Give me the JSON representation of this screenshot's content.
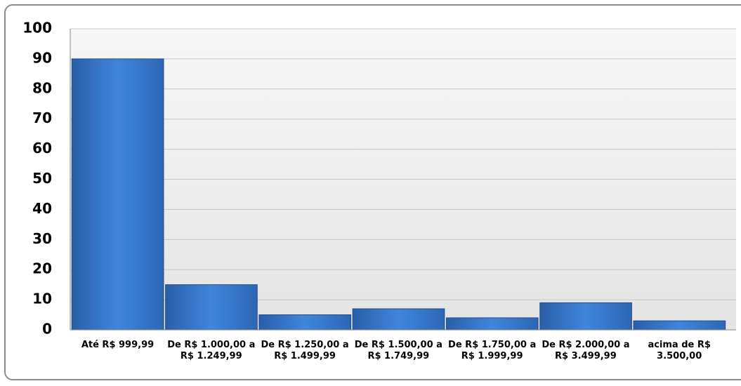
{
  "chart_data": {
    "type": "bar",
    "categories": [
      "Até R$ 999,99",
      "De R$ 1.000,00 a R$ 1.249,99",
      "De R$ 1.250,00 a R$ 1.499,99",
      "De R$ 1.500,00 a R$ 1.749,99",
      "De R$ 1.750,00 a R$ 1.999,99",
      "De R$ 2.000,00 a R$ 3.499,99",
      "acima de R$ 3.500,00"
    ],
    "values": [
      90,
      15,
      5,
      7,
      4,
      9,
      3
    ],
    "color": "#3a7fd0",
    "ylim": [
      0,
      100
    ],
    "yticks": [
      0,
      10,
      20,
      30,
      40,
      50,
      60,
      70,
      80,
      90,
      100
    ],
    "grid": true
  }
}
